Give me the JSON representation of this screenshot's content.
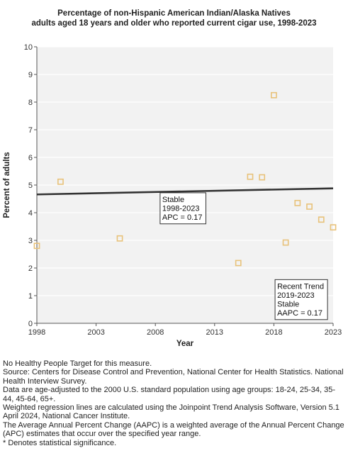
{
  "chart_data": {
    "type": "scatter",
    "title_lines": [
      "Percentage of non-Hispanic American Indian/Alaska Natives",
      "adults aged 18 years and older who reported current cigar use, 1998-2023"
    ],
    "xlabel": "Year",
    "ylabel": "Percent of adults",
    "xlim": [
      1998,
      2023
    ],
    "ylim": [
      0,
      10
    ],
    "x_ticks": [
      1998,
      2003,
      2008,
      2013,
      2018,
      2023
    ],
    "y_ticks": [
      0,
      1,
      2,
      3,
      4,
      5,
      6,
      7,
      8,
      9,
      10
    ],
    "grid": true,
    "series": [
      {
        "kind": "observed",
        "marker": "open-square",
        "color": "#e8c27a",
        "points": [
          {
            "x": 1998,
            "y": 2.8
          },
          {
            "x": 2000,
            "y": 5.12
          },
          {
            "x": 2005,
            "y": 3.07
          },
          {
            "x": 2015,
            "y": 2.18
          },
          {
            "x": 2016,
            "y": 5.3
          },
          {
            "x": 2017,
            "y": 5.28
          },
          {
            "x": 2018,
            "y": 8.25
          },
          {
            "x": 2019,
            "y": 2.92
          },
          {
            "x": 2020,
            "y": 4.35
          },
          {
            "x": 2021,
            "y": 4.22
          },
          {
            "x": 2022,
            "y": 3.75
          },
          {
            "x": 2023,
            "y": 3.47
          }
        ]
      },
      {
        "kind": "trend",
        "color": "#333333",
        "points": [
          {
            "x": 1998,
            "y": 4.66
          },
          {
            "x": 2023,
            "y": 4.88
          }
        ]
      }
    ],
    "annotations": [
      {
        "lines": [
          "Stable",
          "1998-2023",
          "APC =  0.17"
        ],
        "anchor_x": 2008.4,
        "anchor_y": 4.72
      },
      {
        "lines": [
          "Recent Trend",
          "2019-2023",
          "Stable",
          "AAPC =  0.17"
        ],
        "anchor_x": 2018.1,
        "anchor_y": 1.58
      }
    ]
  },
  "notes": [
    "No Healthy People Target for this measure.",
    "Source: Centers for Disease Control and Prevention, National Center for Health Statistics. National Health Interview Survey.",
    "Data are age-adjusted to the 2000 U.S. standard population using age groups: 18-24, 25-34, 35-44, 45-64, 65+.",
    "Weighted regression lines are calculated using the Joinpoint Trend Analysis Software, Version 5.1 April 2024, National Cancer Institute.",
    "The Average Annual Percent Change (AAPC) is a weighted average of the Annual Percent Change (APC) estimates that occur over the specified year range.",
    "* Denotes statistical significance."
  ],
  "colors": {
    "plot_background": "#f2f2f2",
    "gridline": "#ffffff",
    "axis": "#555555",
    "marker": "#e8c27a",
    "trend_line": "#333333"
  }
}
